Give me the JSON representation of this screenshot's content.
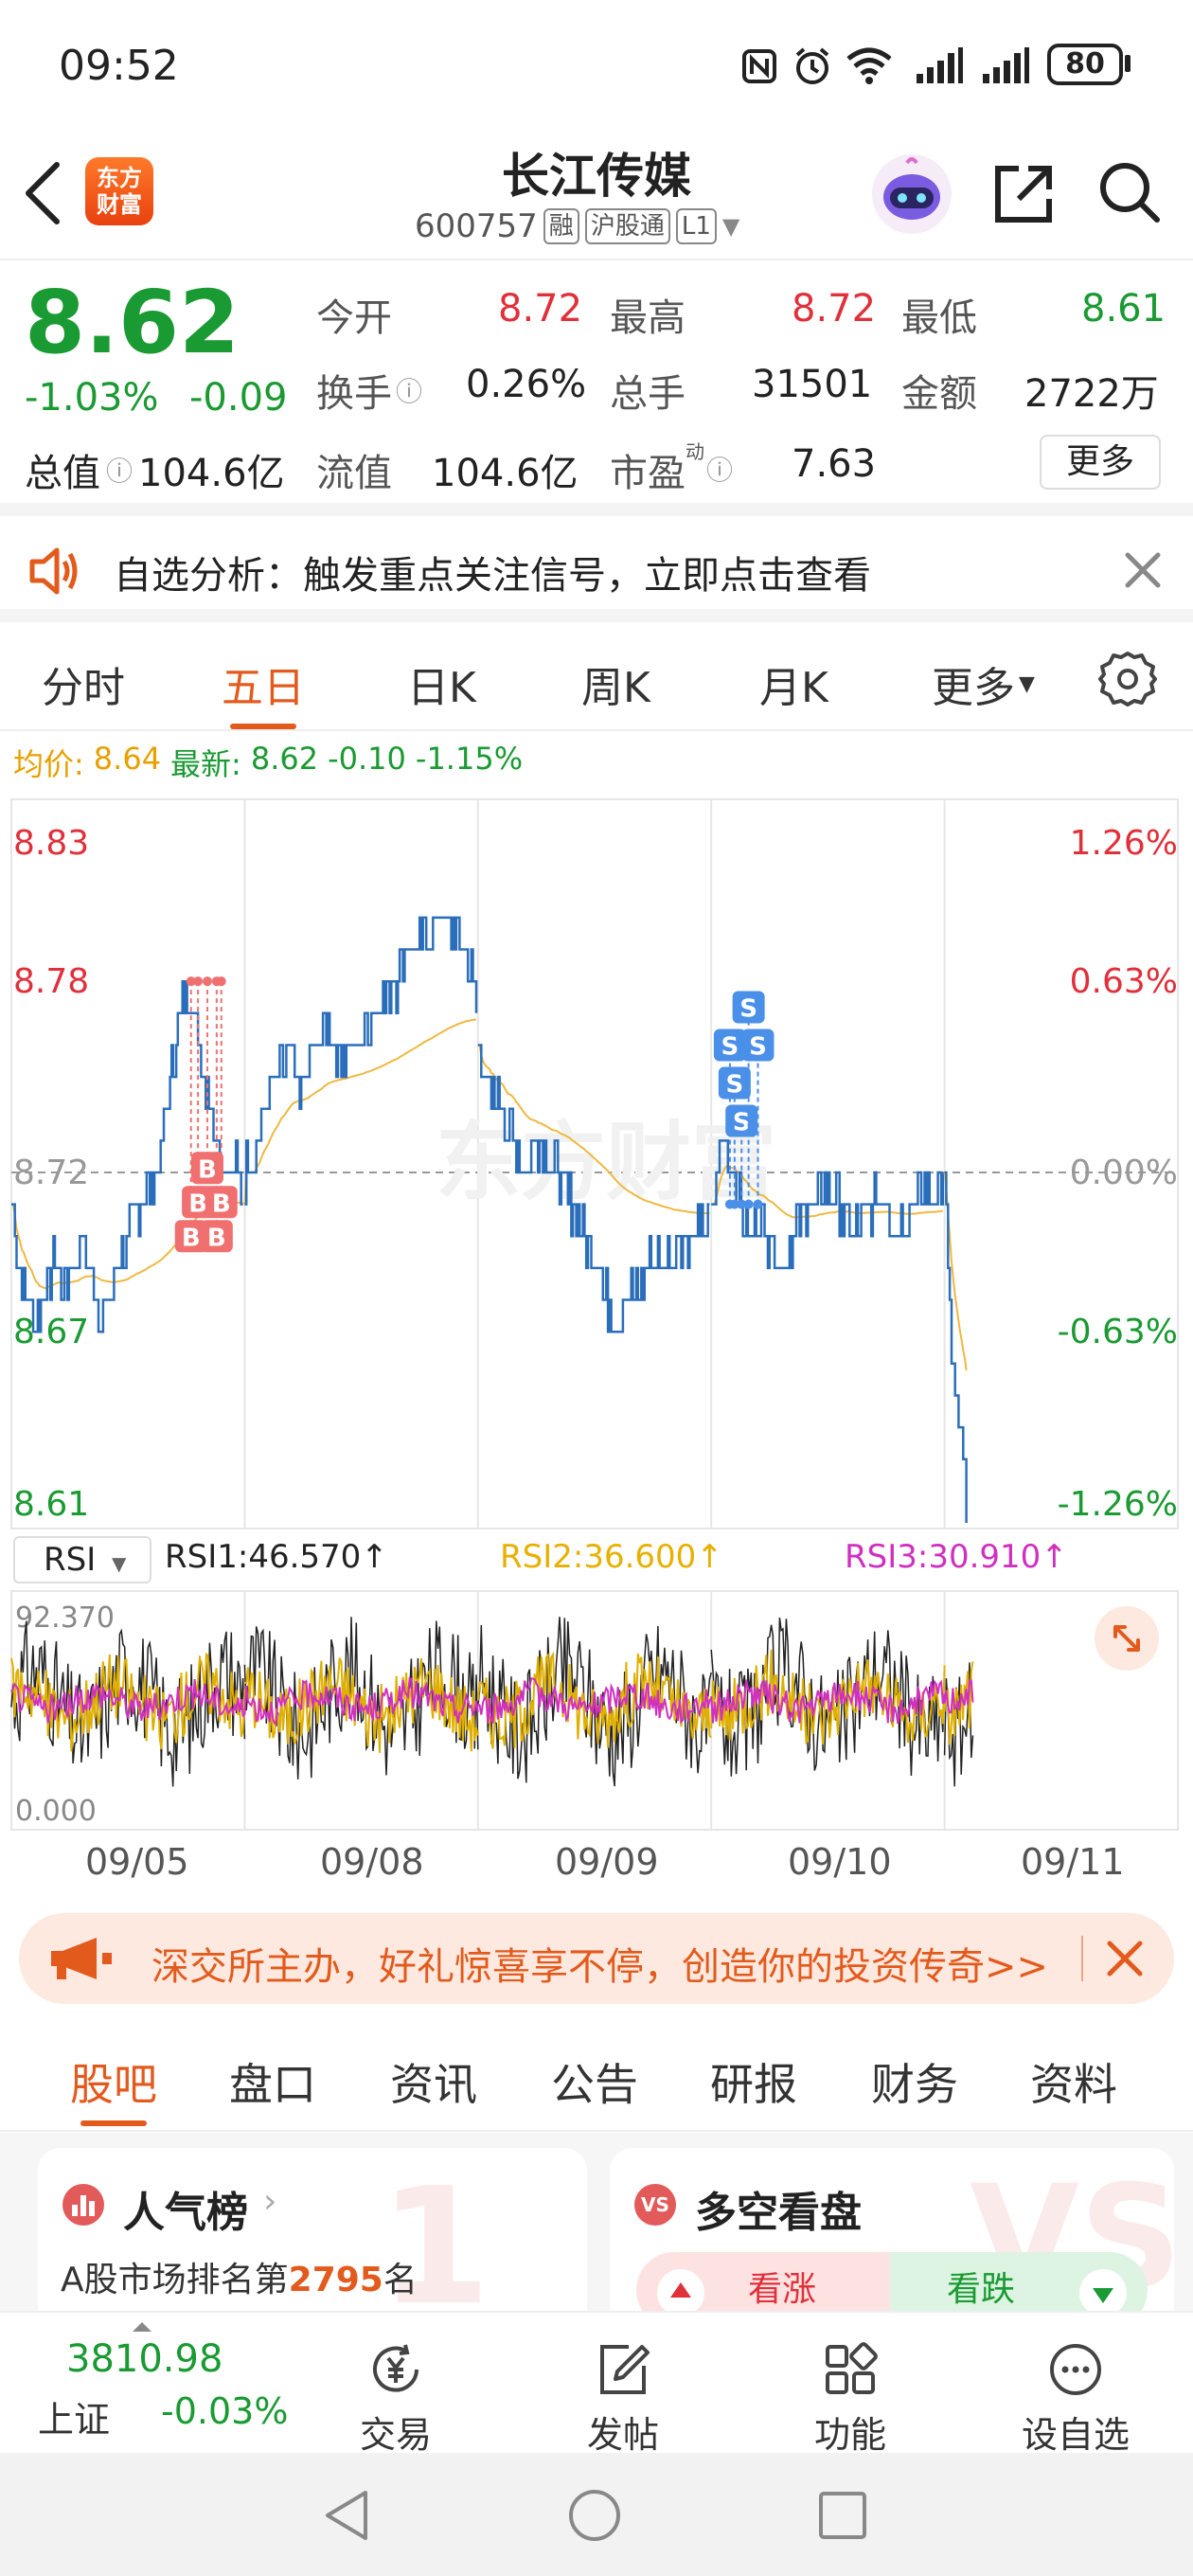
{
  "status_bar": {
    "time": "09:52",
    "battery": "80"
  },
  "header": {
    "logo_text": "东方财富",
    "stock_name": "长江传媒",
    "stock_code": "600757",
    "tags": [
      "融",
      "沪股通",
      "L1"
    ]
  },
  "quote": {
    "price": "8.62",
    "change_pct": "-1.03%",
    "change": "-0.09",
    "total_value_label": "总值",
    "total_value": "104.6亿",
    "float_value_label": "流值",
    "float_value": "104.6亿",
    "pe_label": "市盈",
    "pe_sup": "动",
    "pe": "7.63",
    "open_label": "今开",
    "open": "8.72",
    "high_label": "最高",
    "high": "8.72",
    "low_label": "最低",
    "low": "8.61",
    "turnover_label": "换手",
    "turnover": "0.26%",
    "volume_label": "总手",
    "volume": "31501",
    "amount_label": "金额",
    "amount": "2722万",
    "more_label": "更多"
  },
  "banner": {
    "text": "自选分析：触发重点关注信号，立即点击查看"
  },
  "chart_tabs": [
    "分时",
    "五日",
    "日K",
    "周K",
    "月K",
    "更多"
  ],
  "chart_info": {
    "avg_label": "均价:",
    "avg": "8.64",
    "latest_label": "最新:",
    "latest": "8.62",
    "latest_change": "-0.10",
    "latest_pct": "-1.15%"
  },
  "chart_data": [
    {
      "type": "line",
      "y_ticks_left": [
        "8.83",
        "8.78",
        "8.72",
        "8.67",
        "8.61"
      ],
      "y_ticks_right": [
        "1.26%",
        "0.63%",
        "0.00%",
        "-0.63%",
        "-1.26%"
      ],
      "ylim": [
        8.61,
        8.83
      ],
      "x_labels": [
        "09/05",
        "09/08",
        "09/09",
        "09/10",
        "09/11"
      ],
      "watermark": "东方财富",
      "series": [
        {
          "name": "price",
          "color": "#2a6ebb"
        },
        {
          "name": "avg",
          "color": "#f0b840"
        }
      ],
      "day_segments": [
        {
          "day": "09/05",
          "points": [
            [
              0,
              8.71
            ],
            [
              3,
              8.69
            ],
            [
              6,
              8.68
            ],
            [
              10,
              8.675
            ],
            [
              14,
              8.68
            ],
            [
              18,
              8.69
            ],
            [
              22,
              8.685
            ],
            [
              26,
              8.69
            ],
            [
              30,
              8.7
            ],
            [
              34,
              8.69
            ],
            [
              38,
              8.675
            ],
            [
              42,
              8.68
            ],
            [
              46,
              8.69
            ],
            [
              50,
              8.7
            ],
            [
              54,
              8.705
            ],
            [
              58,
              8.715
            ],
            [
              62,
              8.72
            ],
            [
              66,
              8.735
            ],
            [
              70,
              8.76
            ],
            [
              74,
              8.775
            ],
            [
              78,
              8.77
            ],
            [
              82,
              8.755
            ],
            [
              86,
              8.74
            ],
            [
              90,
              8.725
            ],
            [
              94,
              8.72
            ],
            [
              97,
              8.72
            ],
            [
              100,
              8.715
            ]
          ]
        },
        {
          "day": "09/08",
          "points": [
            [
              0,
              8.72
            ],
            [
              5,
              8.73
            ],
            [
              10,
              8.745
            ],
            [
              15,
              8.75
            ],
            [
              20,
              8.755
            ],
            [
              25,
              8.745
            ],
            [
              30,
              8.76
            ],
            [
              35,
              8.765
            ],
            [
              40,
              8.755
            ],
            [
              45,
              8.76
            ],
            [
              50,
              8.76
            ],
            [
              55,
              8.77
            ],
            [
              60,
              8.775
            ],
            [
              65,
              8.78
            ],
            [
              70,
              8.79
            ],
            [
              75,
              8.79
            ],
            [
              80,
              8.795
            ],
            [
              85,
              8.8
            ],
            [
              90,
              8.795
            ],
            [
              95,
              8.79
            ],
            [
              100,
              8.77
            ]
          ]
        },
        {
          "day": "09/09",
          "points": [
            [
              0,
              8.76
            ],
            [
              5,
              8.745
            ],
            [
              10,
              8.74
            ],
            [
              15,
              8.73
            ],
            [
              20,
              8.72
            ],
            [
              25,
              8.73
            ],
            [
              30,
              8.725
            ],
            [
              35,
              8.72
            ],
            [
              40,
              8.71
            ],
            [
              45,
              8.7
            ],
            [
              50,
              8.695
            ],
            [
              55,
              8.68
            ],
            [
              60,
              8.675
            ],
            [
              65,
              8.68
            ],
            [
              70,
              8.685
            ],
            [
              75,
              8.695
            ],
            [
              80,
              8.69
            ],
            [
              85,
              8.7
            ],
            [
              90,
              8.7
            ],
            [
              95,
              8.7
            ],
            [
              100,
              8.71
            ]
          ]
        },
        {
          "day": "09/10",
          "points": [
            [
              0,
              8.71
            ],
            [
              5,
              8.73
            ],
            [
              10,
              8.72
            ],
            [
              15,
              8.7
            ],
            [
              20,
              8.705
            ],
            [
              25,
              8.7
            ],
            [
              30,
              8.69
            ],
            [
              35,
              8.7
            ],
            [
              40,
              8.71
            ],
            [
              45,
              8.71
            ],
            [
              50,
              8.715
            ],
            [
              55,
              8.71
            ],
            [
              60,
              8.7
            ],
            [
              65,
              8.705
            ],
            [
              70,
              8.71
            ],
            [
              75,
              8.71
            ],
            [
              80,
              8.7
            ],
            [
              85,
              8.71
            ],
            [
              90,
              8.715
            ],
            [
              95,
              8.71
            ],
            [
              100,
              8.72
            ]
          ]
        },
        {
          "day": "09/11",
          "points": [
            [
              0,
              8.72
            ],
            [
              3,
              8.66
            ],
            [
              6,
              8.64
            ],
            [
              8,
              8.63
            ],
            [
              10,
              8.61
            ]
          ]
        }
      ],
      "markers": [
        {
          "label": "B",
          "day": 0,
          "t": 77,
          "color": "#f07070"
        },
        {
          "label": "B",
          "day": 0,
          "t": 80,
          "color": "#f07070"
        },
        {
          "label": "B",
          "day": 0,
          "t": 84,
          "color": "#f07070"
        },
        {
          "label": "B",
          "day": 0,
          "t": 88,
          "color": "#f07070"
        },
        {
          "label": "B",
          "day": 0,
          "t": 90,
          "color": "#f07070"
        },
        {
          "label": "S",
          "day": 3,
          "t": 8,
          "color": "#4a8fe8"
        },
        {
          "label": "S",
          "day": 3,
          "t": 10,
          "color": "#4a8fe8"
        },
        {
          "label": "S",
          "day": 3,
          "t": 13,
          "color": "#4a8fe8"
        },
        {
          "label": "S",
          "day": 3,
          "t": 16,
          "color": "#4a8fe8"
        },
        {
          "label": "S",
          "day": 3,
          "t": 20,
          "color": "#4a8fe8"
        }
      ]
    },
    {
      "type": "line",
      "indicator": "RSI",
      "ylim": [
        0.0,
        92.37
      ],
      "y_ticks_left": [
        "92.370",
        "0.000"
      ],
      "series": [
        {
          "name": "RSI1",
          "label": "RSI1:46.570↑",
          "color": "#222222"
        },
        {
          "name": "RSI2",
          "label": "RSI2:36.600↑",
          "color": "#e0b000"
        },
        {
          "name": "RSI3",
          "label": "RSI3:30.910↑",
          "color": "#d030c0"
        }
      ]
    }
  ],
  "ad": {
    "text": "深交所主办，好礼惊喜享不停，创造你的投资传奇>>"
  },
  "sub_tabs": [
    "股吧",
    "盘口",
    "资讯",
    "公告",
    "研报",
    "财务",
    "资料"
  ],
  "cards": {
    "popularity": {
      "title": "人气榜",
      "rank_prefix": "A股市场排名第",
      "rank": "2795",
      "rank_suffix": "名"
    },
    "sentiment": {
      "title": "多空看盘",
      "bull": "看涨",
      "bear": "看跌"
    }
  },
  "bottom_nav": {
    "index_value": "3810.98",
    "index_name": "上证",
    "index_change": "-0.03%",
    "items": [
      "交易",
      "发帖",
      "功能",
      "设自选"
    ]
  }
}
